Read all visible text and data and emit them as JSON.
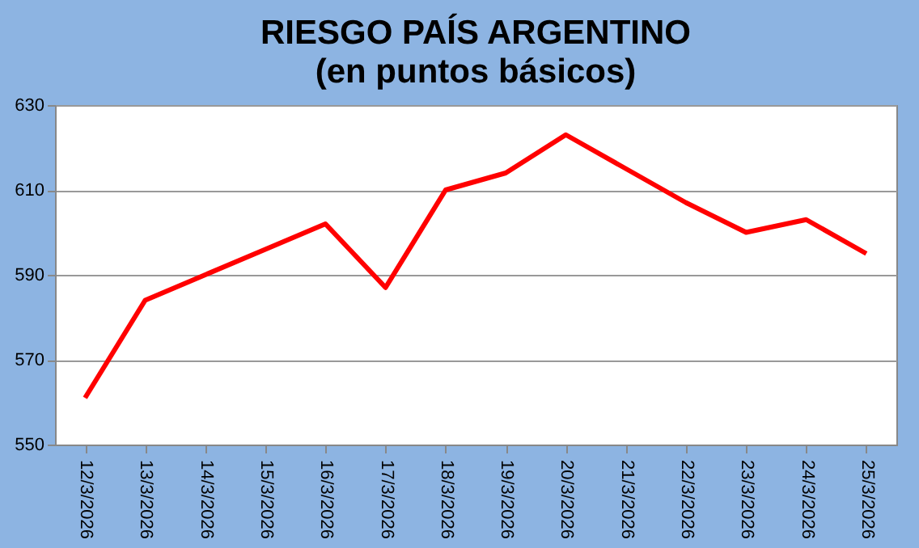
{
  "chart_data": {
    "type": "line",
    "title": "RIESGO PAÍS ARGENTINO",
    "subtitle": "(en puntos básicos)",
    "categories": [
      "12/3/2026",
      "13/3/2026",
      "14/3/2026",
      "15/3/2026",
      "16/3/2026",
      "17/3/2026",
      "18/3/2026",
      "19/3/2026",
      "20/3/2026",
      "21/3/2026",
      "22/3/2026",
      "23/3/2026",
      "24/3/2026",
      "25/3/2026"
    ],
    "series": [
      {
        "color": "#ff0000",
        "values": [
          561,
          584,
          590,
          596,
          602,
          587,
          610,
          614,
          623,
          615,
          607,
          600,
          603,
          595
        ]
      }
    ],
    "ylim": [
      550,
      630
    ],
    "yticks": [
      550,
      570,
      590,
      610,
      630
    ],
    "grid": "y",
    "marker": "none",
    "line_style": "solid"
  }
}
